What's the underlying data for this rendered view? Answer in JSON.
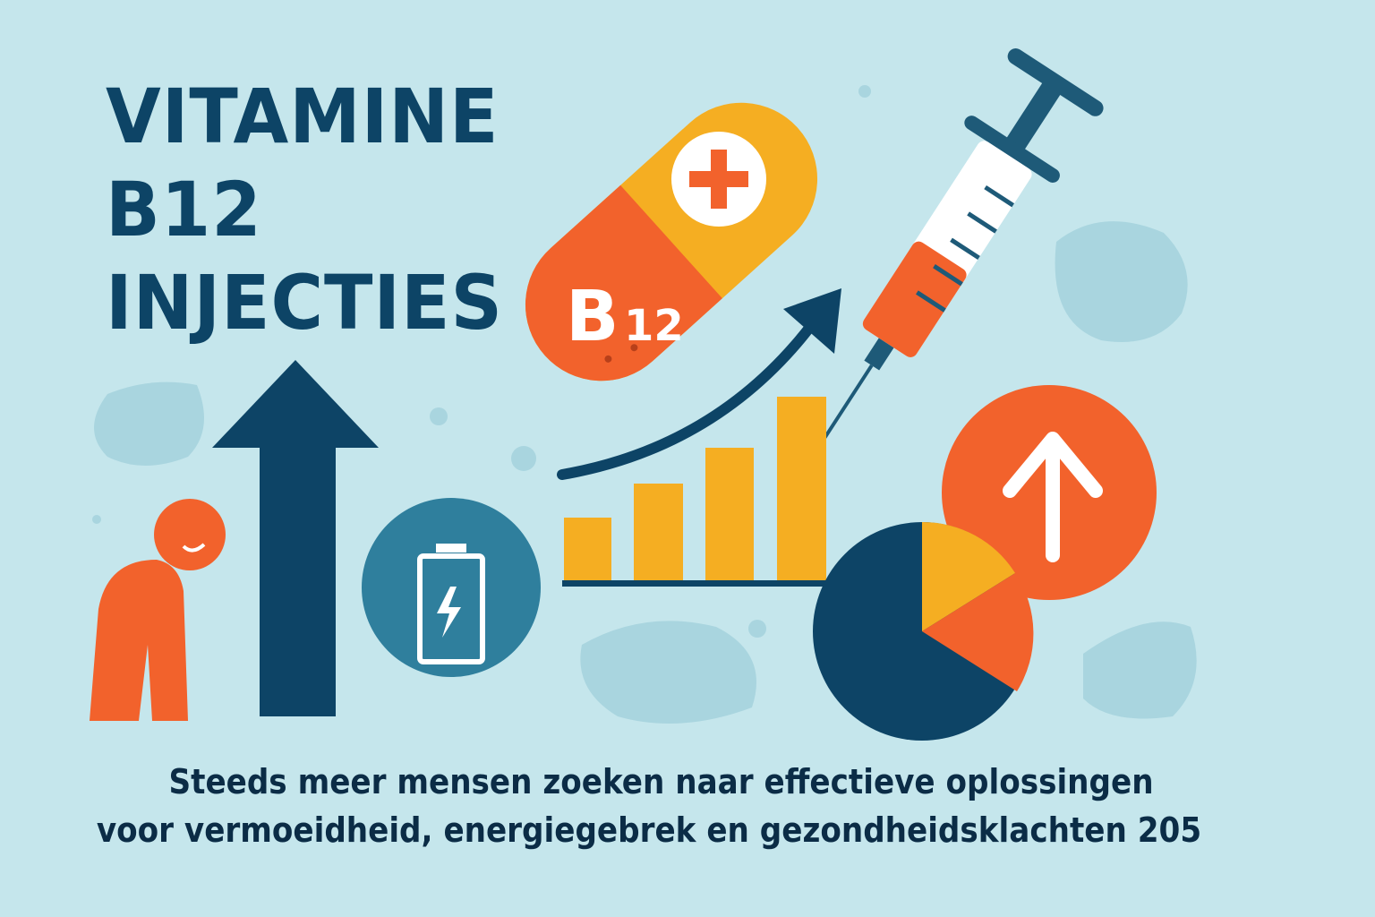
{
  "title": {
    "line1": "VITAMINE",
    "line2": "B12",
    "line3": "INJECTIES"
  },
  "pill": {
    "label_big": "B",
    "label_small": "12"
  },
  "caption": {
    "line1": "Steeds meer mensen zoeken naar effectieve oplossingen",
    "line2": "voor vermoeidheid, energiegebrek en gezondheidsklachten 205"
  },
  "colors": {
    "background": "#c5e6ec",
    "navy": "#0d4466",
    "orange": "#f2622c",
    "yellow": "#f5ae22",
    "teal": "#2f7f9d"
  },
  "icons": [
    "capsule-icon",
    "syringe-icon",
    "tired-person-icon",
    "up-arrow-icon",
    "battery-icon",
    "trend-arrow-icon",
    "bar-chart-icon",
    "pie-chart-icon",
    "up-circle-icon"
  ]
}
